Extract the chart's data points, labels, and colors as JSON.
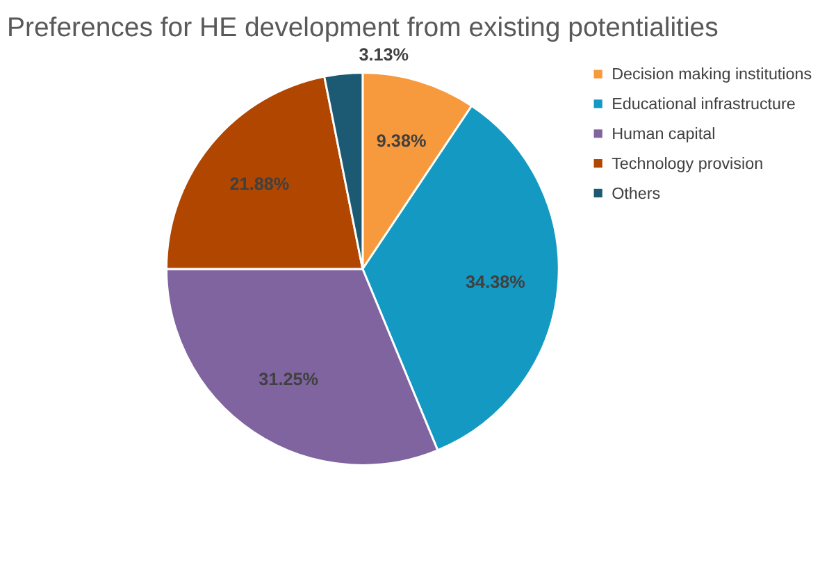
{
  "chart_data": {
    "type": "pie",
    "title": "Preferences for HE development from existing potentialities",
    "categories": [
      "Decision making institutions",
      "Educational infrastructure",
      "Human capital",
      "Technology provision",
      "Others"
    ],
    "values": [
      9.38,
      34.38,
      31.25,
      21.88,
      3.13
    ],
    "colors": [
      "#f79a3e",
      "#149ac2",
      "#7f64a0",
      "#b04600",
      "#1c5a74"
    ],
    "value_labels": [
      "9.38%",
      "34.38%",
      "31.25%",
      "21.88%",
      "3.13%"
    ],
    "legend": "right"
  }
}
